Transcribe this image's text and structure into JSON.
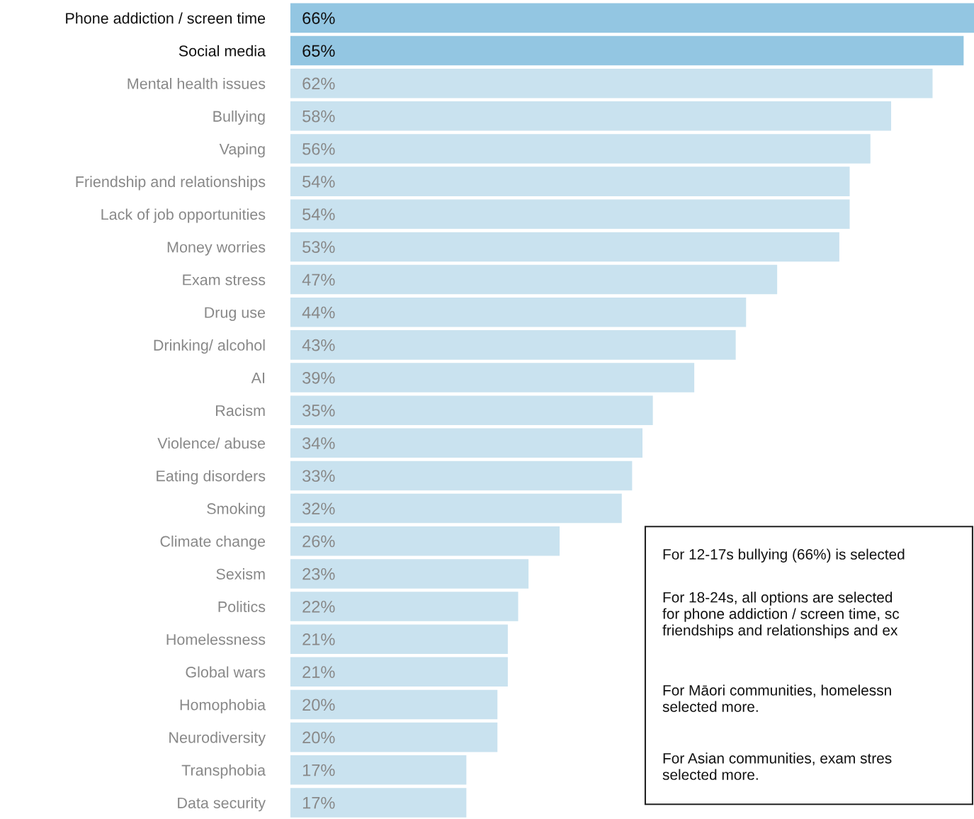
{
  "chart_data": {
    "type": "bar",
    "orientation": "horizontal",
    "value_labels": [
      "66%",
      "65%",
      "62%",
      "58%",
      "56%",
      "54%",
      "54%",
      "53%",
      "47%",
      "44%",
      "43%",
      "39%",
      "35%",
      "34%",
      "33%",
      "32%",
      "26%",
      "23%",
      "22%",
      "21%",
      "21%",
      "20%",
      "20%",
      "17%",
      "17%"
    ],
    "tick_labels": "y",
    "grid": false,
    "legend": false,
    "categories": [
      "Phone addiction / screen time",
      "Social media",
      "Mental health issues",
      "Bullying",
      "Vaping",
      "Friendship and relationships",
      "Lack of job opportunities",
      "Money worries",
      "Exam stress",
      "Drug use",
      "Drinking/ alcohol",
      "AI",
      "Racism",
      "Violence/ abuse",
      "Eating disorders",
      "Smoking",
      "Climate change",
      "Sexism",
      "Politics",
      "Homelessness",
      "Global wars",
      "Homophobia",
      "Neurodiversity",
      "Transphobia",
      "Data security"
    ],
    "values": [
      66,
      65,
      62,
      58,
      56,
      54,
      54,
      53,
      47,
      44,
      43,
      39,
      35,
      34,
      33,
      32,
      26,
      23,
      22,
      21,
      21,
      20,
      20,
      17,
      17
    ],
    "colors": [
      "#93c6e2",
      "#93c6e2",
      "#c9e2ef",
      "#c9e2ef",
      "#c9e2ef",
      "#c9e2ef",
      "#c9e2ef",
      "#c9e2ef",
      "#c9e2ef",
      "#c9e2ef",
      "#c9e2ef",
      "#c9e2ef",
      "#c9e2ef",
      "#c9e2ef",
      "#c9e2ef",
      "#c9e2ef",
      "#c9e2ef",
      "#c9e2ef",
      "#c9e2ef",
      "#c9e2ef",
      "#c9e2ef",
      "#c9e2ef",
      "#c9e2ef",
      "#c9e2ef",
      "#c9e2ef"
    ],
    "annotations": [
      "For 12-17s bullying (66%) is selected",
      "For 18-24s, all options are selected\nfor phone addiction / screen time, sc\nfriendships and relationships and ex",
      "For Māori communities, homelessn\nselected more.",
      "For Asian communities, exam stres\nselected more."
    ]
  }
}
